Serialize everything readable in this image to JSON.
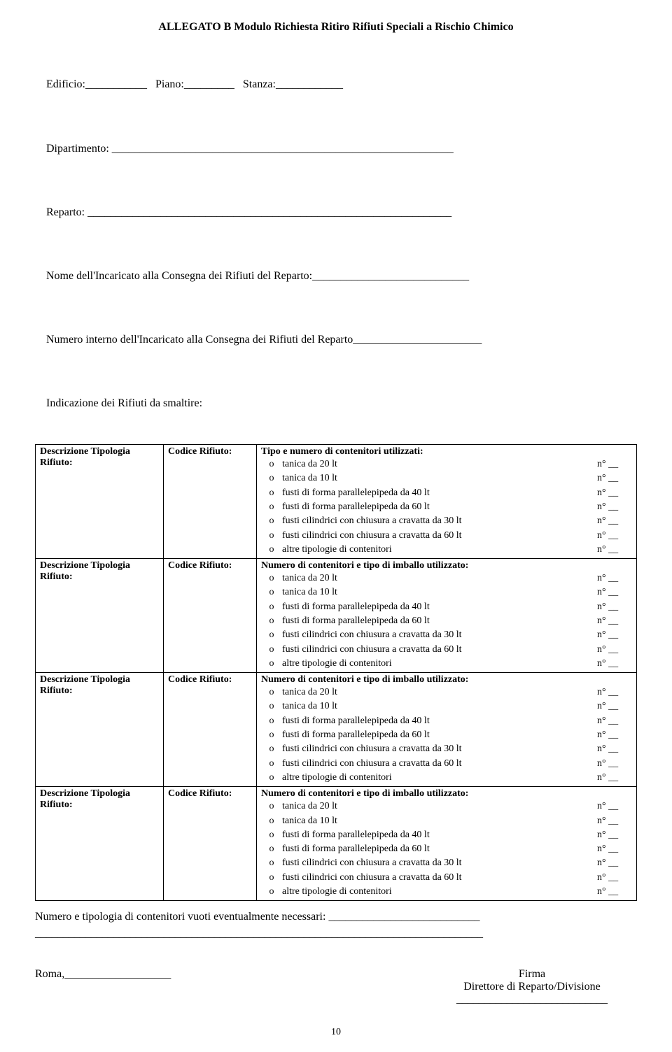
{
  "title": "ALLEGATO B Modulo Richiesta Ritiro Rifiuti Speciali a Rischio Chimico",
  "header": {
    "edificio": "Edificio:",
    "piano": "Piano:",
    "stanza": "Stanza:",
    "dipartimento": "Dipartimento:",
    "reparto": "Reparto:",
    "nome_incaricato": "Nome dell'Incaricato alla Consegna dei Rifiuti del Reparto:",
    "numero_interno": "Numero interno dell'Incaricato alla Consegna dei Rifiuti del Reparto",
    "indicazione": "Indicazione dei Rifiuti da smaltire:"
  },
  "col_labels": {
    "desc_tipologia": "Descrizione Tipologia",
    "rifiuto": "Rifiuto:",
    "codice_rifiuto": "Codice Rifiuto:"
  },
  "section_headers": {
    "primo": "Tipo e numero di contenitori utilizzati:",
    "altri": "Numero di contenitori e tipo di imballo utilizzato:"
  },
  "items": [
    "tanica da 20 lt",
    "tanica da 10 lt",
    "fusti di forma parallelepipeda da 40 lt",
    "fusti di forma parallelepipeda da 60 lt",
    "fusti  cilindrici con chiusura a cravatta  da 30 lt",
    "fusti  cilindrici con chiusura a cravatta  da 60 lt",
    "altre tipologie di contenitori"
  ],
  "n_suffix": "n° __",
  "bullet": "o",
  "footer": {
    "numero_tipologia": "Numero e tipologia  di contenitori vuoti eventualmente necessari:",
    "roma": "Roma,",
    "firma": "Firma",
    "direttore": "Direttore di Reparto/Divisione"
  },
  "page_number": "10"
}
